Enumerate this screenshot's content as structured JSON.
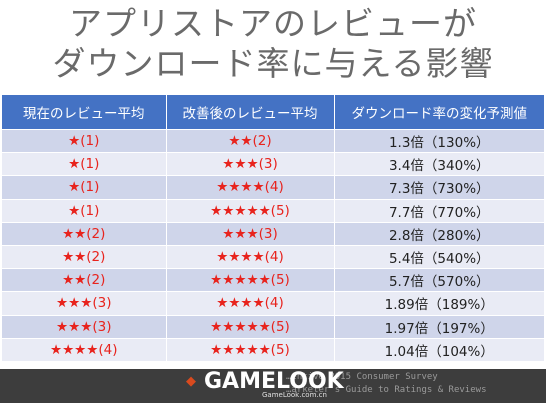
{
  "title": {
    "line1": "アプリストアのレビューが",
    "line2": "ダウンロード率に与える影響"
  },
  "table": {
    "headers": [
      "現在のレビュー平均",
      "改善後のレビュー平均",
      "ダウンロード率の変化予測値"
    ],
    "rows": [
      [
        "★(1)",
        "★★(2)",
        "1.3倍（130%）"
      ],
      [
        "★(1)",
        "★★★(3)",
        "3.4倍（340%）"
      ],
      [
        "★(1)",
        "★★★★(4)",
        "7.3倍（730%）"
      ],
      [
        "★(1)",
        "★★★★★(5)",
        "7.7倍（770%）"
      ],
      [
        "★★(2)",
        "★★★(3)",
        "2.8倍（280%）"
      ],
      [
        "★★(2)",
        "★★★★(4)",
        "5.4倍（540%）"
      ],
      [
        "★★(2)",
        "★★★★★(5)",
        "5.7倍（570%）"
      ],
      [
        "★★★(3)",
        "★★★★(4)",
        "1.89倍（189%）"
      ],
      [
        "★★★(3)",
        "★★★★★(5)",
        "1.97倍（197%）"
      ],
      [
        "★★★★(4)",
        "★★★★★(5)",
        "1.04倍（104%）"
      ]
    ]
  },
  "footer": {
    "logo_text": "GAMELOOK",
    "logo_url": "GameLook.com.cn",
    "source_line1": "…entive 2015 Consumer Survey",
    "source_line2": "…arketer's Guide to Ratings & Reviews"
  },
  "colors": {
    "header_bg": "#4472c4",
    "row_odd": "#cfd5ea",
    "row_even": "#e9ebf5",
    "star_red": "#e8231d",
    "footer_bg": "#3d3d3d"
  }
}
